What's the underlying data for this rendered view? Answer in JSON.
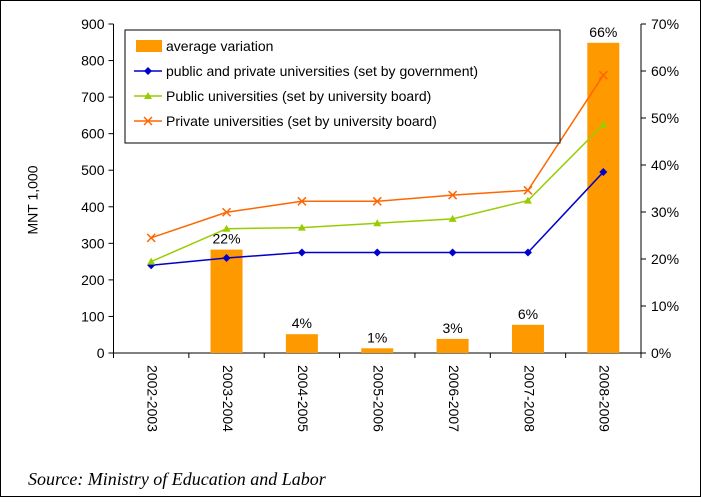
{
  "chart_data": {
    "type": "bar-line",
    "categories": [
      "2002-2003",
      "2003-2004",
      "2004-2005",
      "2005-2006",
      "2006-2007",
      "2007-2008",
      "2008-2009"
    ],
    "y_label": "MNT 1,000",
    "ylim": [
      0,
      900
    ],
    "yticks": [
      0,
      100,
      200,
      300,
      400,
      500,
      600,
      700,
      800,
      900
    ],
    "y2lim": [
      0,
      70
    ],
    "y2ticks": [
      {
        "value": 0,
        "label": "0%"
      },
      {
        "value": 10,
        "label": "10%"
      },
      {
        "value": 20,
        "label": "20%"
      },
      {
        "value": 30,
        "label": "30%"
      },
      {
        "value": 40,
        "label": "40%"
      },
      {
        "value": 50,
        "label": "50%"
      },
      {
        "value": 60,
        "label": "60%"
      },
      {
        "value": 70,
        "label": "70%"
      }
    ],
    "series": [
      {
        "name": "average variation",
        "type": "bar",
        "axis": "y2",
        "color": "#ff9900",
        "values": [
          null,
          22,
          4,
          1,
          3,
          6,
          66
        ],
        "value_labels": [
          null,
          "22%",
          "4%",
          "1%",
          "3%",
          "6%",
          "66%"
        ]
      },
      {
        "name": "public and private universities (set by government)",
        "type": "line",
        "marker": "diamond",
        "color": "#0000cc",
        "values": [
          240,
          260,
          275,
          275,
          275,
          275,
          495
        ]
      },
      {
        "name": "Public universities (set by university board)",
        "type": "line",
        "marker": "triangle",
        "color": "#99cc00",
        "values": [
          250,
          340,
          343,
          355,
          367,
          417,
          625
        ]
      },
      {
        "name": "Private universities (set by university board)",
        "type": "line",
        "marker": "x",
        "color": "#ff6600",
        "values": [
          315,
          385,
          415,
          415,
          432,
          445,
          760
        ]
      }
    ],
    "source": "Source: Ministry of Education and Labor"
  }
}
